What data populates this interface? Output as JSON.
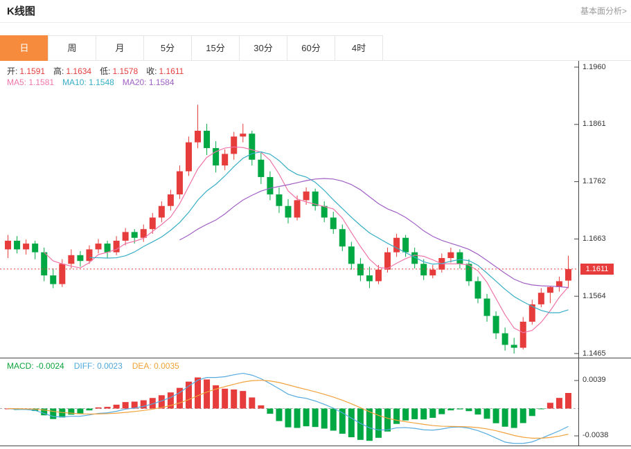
{
  "header": {
    "title": "K线图",
    "link_label": "基本面分析>"
  },
  "tabs": {
    "items": [
      "日",
      "周",
      "月",
      "5分",
      "15分",
      "30分",
      "60分",
      "4时"
    ],
    "active_index": 0
  },
  "ohlc_legend": {
    "open_label": "开:",
    "open": "1.1591",
    "high_label": "高:",
    "high": "1.1634",
    "low_label": "低:",
    "low": "1.1578",
    "close_label": "收:",
    "close": "1.1611"
  },
  "ma_legend": {
    "ma5_label": "MA5:",
    "ma5": "1.1581",
    "ma10_label": "MA10:",
    "ma10": "1.1548",
    "ma20_label": "MA20:",
    "ma20": "1.1584"
  },
  "price_axis": {
    "labels": [
      "1.1960",
      "1.1861",
      "1.1762",
      "1.1663",
      "1.1564",
      "1.1465"
    ],
    "current": "1.1611"
  },
  "macd_legend": {
    "macd_label": "MACD:",
    "macd": "-0.0024",
    "diff_label": "DIFF:",
    "diff": "0.0023",
    "dea_label": "DEA:",
    "dea": "0.0035"
  },
  "macd_axis": {
    "top": "0.0039",
    "bottom": "-0.0038"
  },
  "colors": {
    "up": "#e63c3c",
    "down": "#00a843",
    "ma5": "#f075a8",
    "ma10": "#35aec5",
    "ma20": "#a05fc5",
    "diff": "#55aadf",
    "dea": "#f2a23c",
    "accent": "#f78b3d",
    "axis": "#444444"
  },
  "chart_data": {
    "type": "candlestick",
    "title": "K线图",
    "y_axis": {
      "min": 1.1465,
      "max": 1.196,
      "ticks": [
        1.196,
        1.1861,
        1.1762,
        1.1663,
        1.1564,
        1.1465
      ]
    },
    "current_price": 1.1611,
    "last_candle": {
      "open": 1.1591,
      "high": 1.1634,
      "low": 1.1578,
      "close": 1.1611
    },
    "ma_periods": [
      5,
      10,
      20
    ],
    "ma_values_shown": {
      "ma5": 1.1581,
      "ma10": 1.1548,
      "ma20": 1.1584
    },
    "candles": [
      [
        1.1645,
        1.167,
        1.163,
        1.166
      ],
      [
        1.166,
        1.1668,
        1.1638,
        1.1645
      ],
      [
        1.1645,
        1.1662,
        1.1636,
        1.1655
      ],
      [
        1.1655,
        1.166,
        1.1628,
        1.164
      ],
      [
        1.164,
        1.1648,
        1.159,
        1.16
      ],
      [
        1.16,
        1.1612,
        1.1578,
        1.1585
      ],
      [
        1.1585,
        1.1628,
        1.158,
        1.162
      ],
      [
        1.162,
        1.1645,
        1.1612,
        1.1635
      ],
      [
        1.1635,
        1.1642,
        1.1615,
        1.1625
      ],
      [
        1.1625,
        1.1652,
        1.162,
        1.1645
      ],
      [
        1.1645,
        1.1663,
        1.1638,
        1.1655
      ],
      [
        1.1655,
        1.166,
        1.163,
        1.164
      ],
      [
        1.164,
        1.1668,
        1.1635,
        1.166
      ],
      [
        1.166,
        1.1682,
        1.1652,
        1.1675
      ],
      [
        1.1675,
        1.168,
        1.1655,
        1.1665
      ],
      [
        1.1665,
        1.1688,
        1.1658,
        1.168
      ],
      [
        1.168,
        1.1708,
        1.1672,
        1.17
      ],
      [
        1.17,
        1.1728,
        1.1692,
        1.172
      ],
      [
        1.172,
        1.1748,
        1.1712,
        1.174
      ],
      [
        1.174,
        1.179,
        1.1732,
        1.178
      ],
      [
        1.178,
        1.184,
        1.1772,
        1.183
      ],
      [
        1.183,
        1.1895,
        1.182,
        1.185
      ],
      [
        1.185,
        1.1862,
        1.1808,
        1.182
      ],
      [
        1.182,
        1.1832,
        1.1778,
        1.179
      ],
      [
        1.179,
        1.1818,
        1.1782,
        1.181
      ],
      [
        1.181,
        1.1848,
        1.18,
        1.184
      ],
      [
        1.184,
        1.1862,
        1.183,
        1.1845
      ],
      [
        1.1845,
        1.185,
        1.179,
        1.18
      ],
      [
        1.18,
        1.1812,
        1.1758,
        1.177
      ],
      [
        1.177,
        1.178,
        1.173,
        1.174
      ],
      [
        1.174,
        1.1752,
        1.1708,
        1.172
      ],
      [
        1.172,
        1.1732,
        1.169,
        1.17
      ],
      [
        1.17,
        1.1738,
        1.1695,
        1.173
      ],
      [
        1.173,
        1.1752,
        1.1722,
        1.1745
      ],
      [
        1.1745,
        1.175,
        1.1712,
        1.172
      ],
      [
        1.172,
        1.1728,
        1.1692,
        1.17
      ],
      [
        1.17,
        1.171,
        1.1672,
        1.168
      ],
      [
        1.168,
        1.1688,
        1.1642,
        1.165
      ],
      [
        1.165,
        1.1658,
        1.161,
        1.162
      ],
      [
        1.162,
        1.163,
        1.159,
        1.16
      ],
      [
        1.16,
        1.1615,
        1.1578,
        1.159
      ],
      [
        1.159,
        1.1618,
        1.1585,
        1.161
      ],
      [
        1.161,
        1.1648,
        1.1605,
        1.164
      ],
      [
        1.164,
        1.1672,
        1.1632,
        1.1665
      ],
      [
        1.1665,
        1.167,
        1.1632,
        1.164
      ],
      [
        1.164,
        1.1648,
        1.1612,
        1.162
      ],
      [
        1.162,
        1.1628,
        1.1592,
        1.16
      ],
      [
        1.16,
        1.1618,
        1.1595,
        1.161
      ],
      [
        1.161,
        1.1638,
        1.1605,
        1.163
      ],
      [
        1.163,
        1.1648,
        1.1622,
        1.164
      ],
      [
        1.164,
        1.1645,
        1.1612,
        1.162
      ],
      [
        1.162,
        1.1628,
        1.1582,
        1.159
      ],
      [
        1.159,
        1.1598,
        1.1552,
        1.156
      ],
      [
        1.156,
        1.1568,
        1.152,
        1.153
      ],
      [
        1.153,
        1.1538,
        1.149,
        1.15
      ],
      [
        1.15,
        1.151,
        1.147,
        1.148
      ],
      [
        1.148,
        1.1492,
        1.1465,
        1.1475
      ],
      [
        1.1475,
        1.1528,
        1.1472,
        1.152
      ],
      [
        1.152,
        1.1558,
        1.1515,
        1.155
      ],
      [
        1.155,
        1.1578,
        1.1545,
        1.157
      ],
      [
        1.157,
        1.1582,
        1.1552,
        1.158
      ],
      [
        1.158,
        1.1598,
        1.1572,
        1.159
      ],
      [
        1.1591,
        1.1634,
        1.1578,
        1.1611
      ]
    ],
    "macd": {
      "type": "macd-histogram",
      "legend": {
        "macd": -0.0024,
        "diff": 0.0023,
        "dea": 0.0035
      },
      "y_axis": {
        "top": 0.0039,
        "bottom": -0.0038
      },
      "derived_from": "candles (EMA12, EMA26, DEA9, hist = 2*(DIFF-DEA))"
    }
  }
}
